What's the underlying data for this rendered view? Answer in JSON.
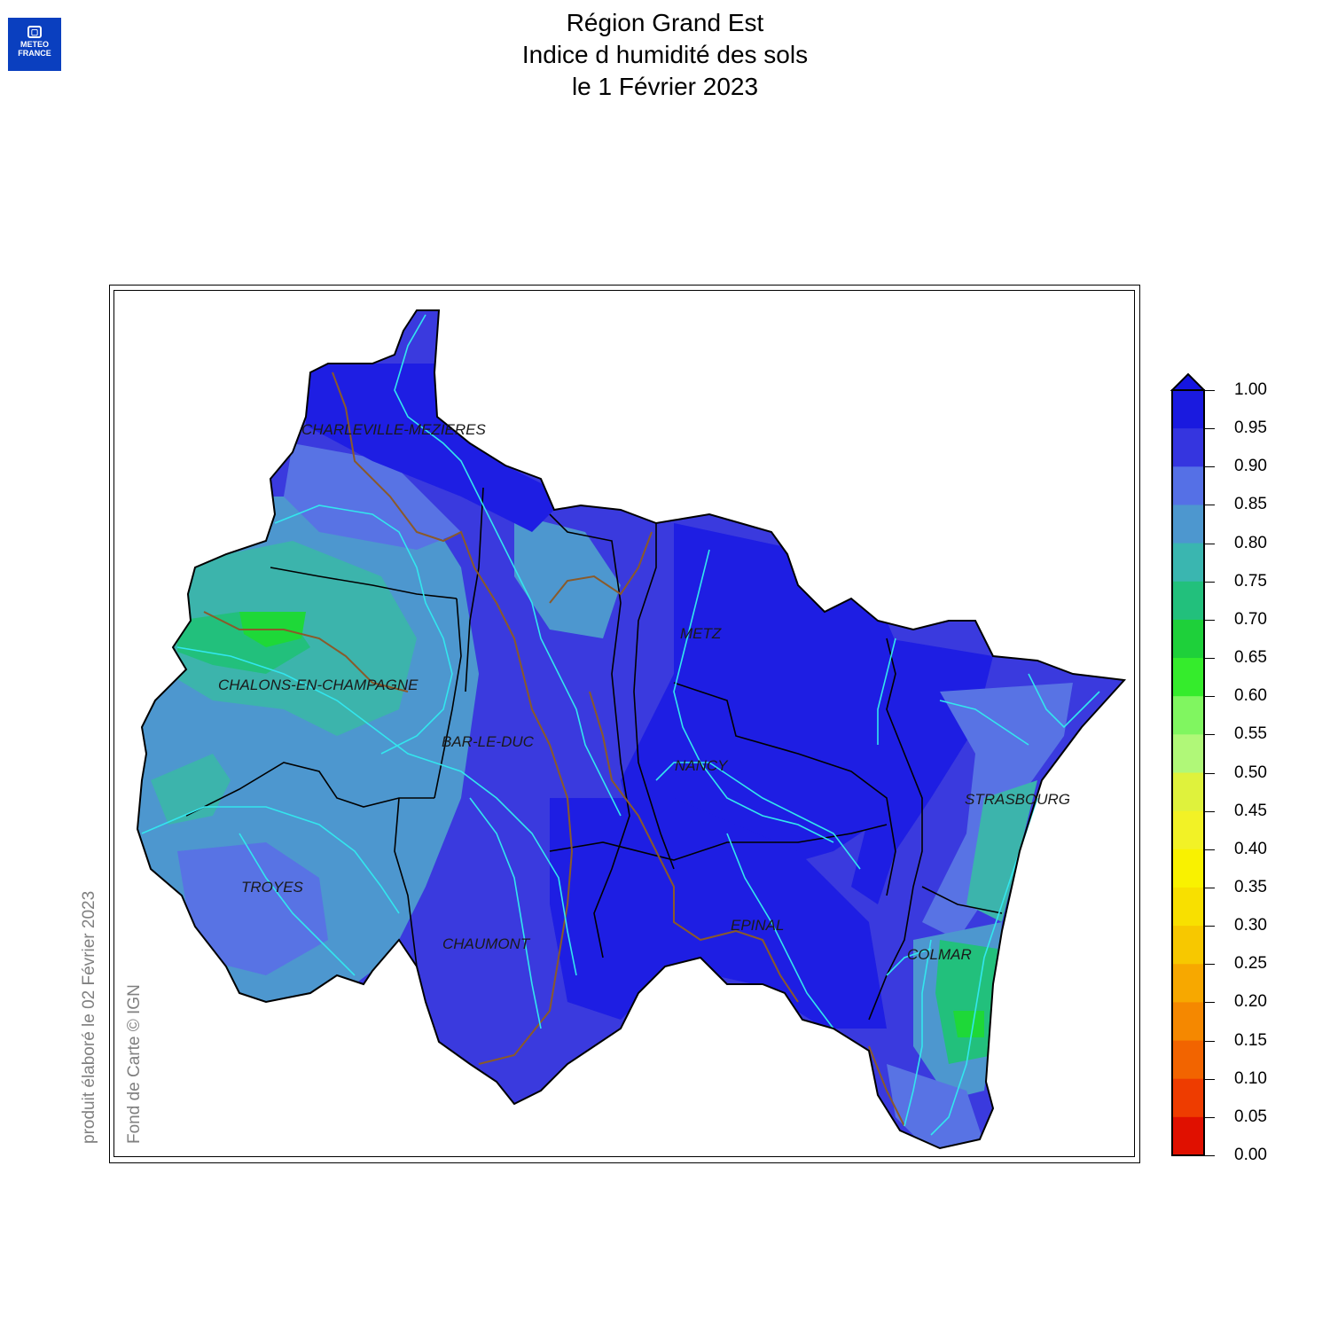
{
  "logo": {
    "line1": "METEO",
    "line2": "FRANCE"
  },
  "title": {
    "line1": "Région Grand Est",
    "line2": "Indice d humidité des sols",
    "line3": "le 1 Février 2023"
  },
  "credits": {
    "produced": "produit élaboré le 02 Février 2023",
    "basemap": "Fond de Carte © IGN"
  },
  "cities": [
    "CHARLEVILLE-MEZIERES",
    "METZ",
    "CHALONS-EN-CHAMPAGNE",
    "BAR-LE-DUC",
    "NANCY",
    "STRASBOURG",
    "TROYES",
    "EPINAL",
    "CHAUMONT",
    "COLMAR"
  ],
  "legend": {
    "labels": [
      "1.00",
      "0.95",
      "0.90",
      "0.85",
      "0.80",
      "0.75",
      "0.70",
      "0.65",
      "0.60",
      "0.55",
      "0.50",
      "0.45",
      "0.40",
      "0.35",
      "0.30",
      "0.25",
      "0.20",
      "0.15",
      "0.10",
      "0.05",
      "0.00"
    ],
    "colors": [
      "#1a1adf",
      "#3535df",
      "#5570e6",
      "#4d97cf",
      "#3ab6b0",
      "#22c07c",
      "#1ed03a",
      "#35ec2c",
      "#80f660",
      "#b0f878",
      "#dff23c",
      "#f2f226",
      "#f9f200",
      "#f8e000",
      "#f7c800",
      "#f7a800",
      "#f58800",
      "#f26400",
      "#ee3c00",
      "#e01000"
    ],
    "top_color": "#1515e0"
  },
  "map_colors": {
    "very_wet": "#1e1ee3",
    "wet": "#3a3ade",
    "blue_medium": "#5873e4",
    "blue_green": "#4d97cf",
    "teal": "#3cb4ac",
    "green": "#22c07c",
    "bright_green": "#1ed838",
    "rivers": "#33e6ee",
    "borders": "#000000",
    "regional_border": "#8a5a2a"
  }
}
